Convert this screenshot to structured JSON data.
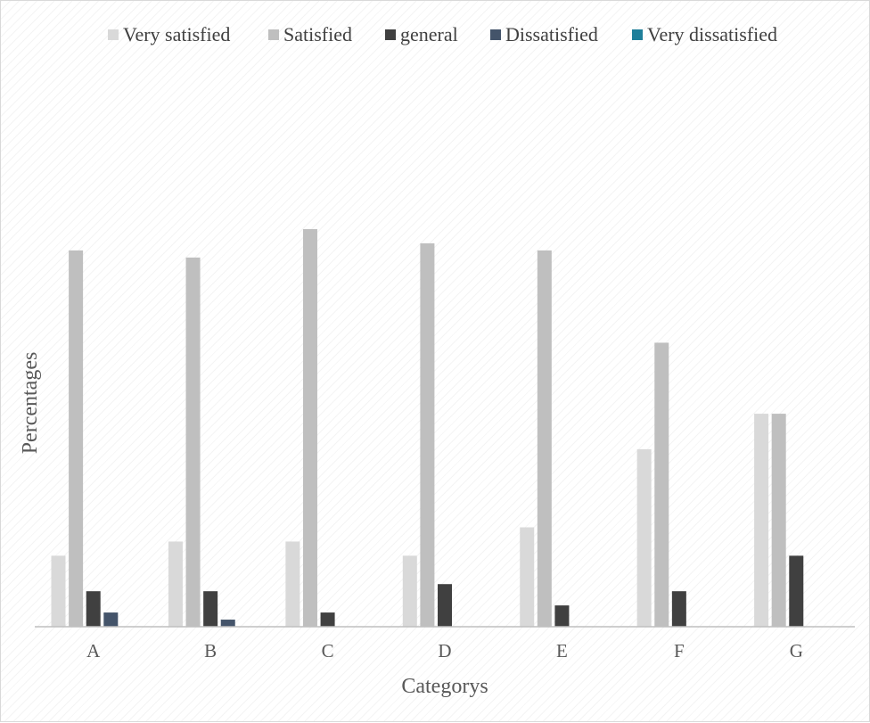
{
  "chart_data": {
    "type": "bar",
    "title": "",
    "xlabel": "Categorys",
    "ylabel": "Percentages",
    "ylim": [
      0,
      56
    ],
    "grid": false,
    "legend_position": "top",
    "categories": [
      "A",
      "B",
      "C",
      "D",
      "E",
      "F",
      "G"
    ],
    "series": [
      {
        "name": "Very satisfied",
        "color": "#d9d9d9",
        "values": [
          10,
          12,
          12,
          10,
          14,
          25,
          30
        ]
      },
      {
        "name": "Satisfied",
        "color": "#bfbfbf",
        "values": [
          53,
          52,
          56,
          54,
          53,
          40,
          30
        ]
      },
      {
        "name": "general",
        "color": "#404040",
        "values": [
          5,
          5,
          2,
          6,
          3,
          5,
          10
        ]
      },
      {
        "name": "Dissatisfied",
        "color": "#44546a",
        "values": [
          2,
          1,
          0,
          0,
          0,
          0,
          0
        ]
      },
      {
        "name": "Very dissatisfied",
        "color": "#1f7f9a",
        "values": [
          0,
          0,
          0,
          0,
          0,
          0,
          0
        ]
      }
    ]
  }
}
